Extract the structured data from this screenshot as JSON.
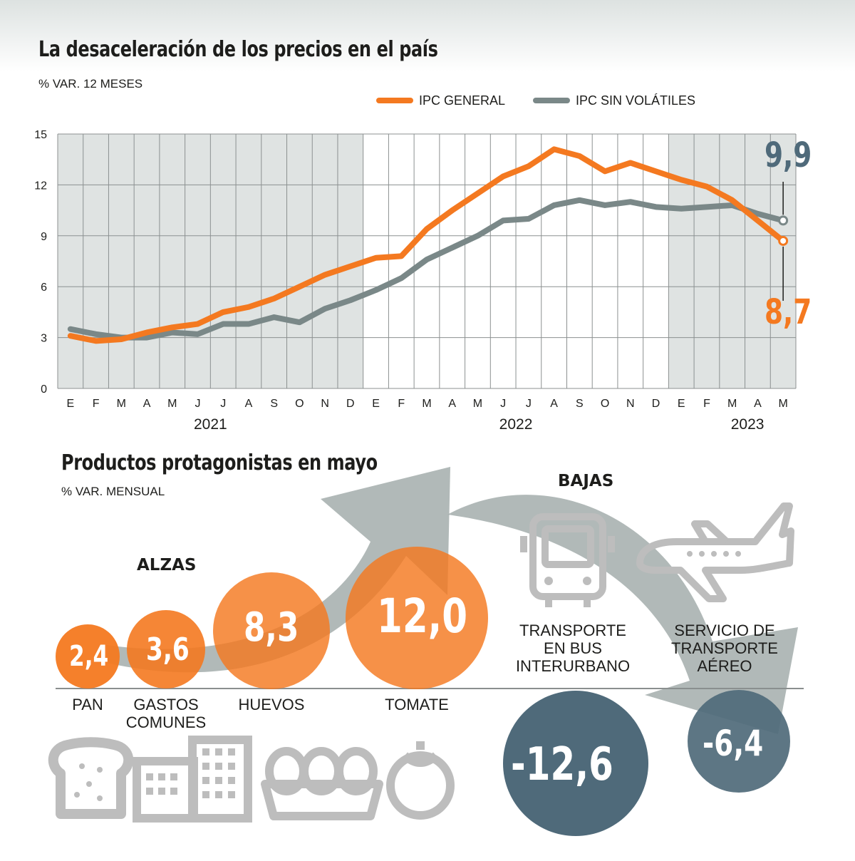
{
  "header": {
    "title": "La desaceleración de los precios en el país",
    "subtitle": "% VAR. 12 MESES"
  },
  "colors": {
    "general": "#f47920",
    "sin_volatiles": "#7a8888",
    "shade": "#dfe3e2",
    "circle_dark": "#4f6a7a",
    "arrow": "#a3adab",
    "icon": "#bdbdbd"
  },
  "chart_data": {
    "type": "line",
    "ylabel": "% VAR. 12 MESES",
    "ylim": [
      0,
      15
    ],
    "yticks": [
      0,
      3,
      6,
      9,
      12,
      15
    ],
    "categories": [
      "E",
      "F",
      "M",
      "A",
      "M",
      "J",
      "J",
      "A",
      "S",
      "O",
      "N",
      "D",
      "E",
      "F",
      "M",
      "A",
      "M",
      "J",
      "J",
      "A",
      "S",
      "O",
      "N",
      "D",
      "E",
      "F",
      "M",
      "A",
      "M"
    ],
    "years": [
      {
        "label": "2021",
        "start": 0,
        "end": 11,
        "shaded": true
      },
      {
        "label": "2022",
        "start": 12,
        "end": 23,
        "shaded": false
      },
      {
        "label": "2023",
        "start": 24,
        "end": 28,
        "shaded": true
      }
    ],
    "grid": true,
    "legend_position": "top-right",
    "series": [
      {
        "name": "IPC GENERAL",
        "color": "#f47920",
        "values": [
          3.1,
          2.8,
          2.9,
          3.3,
          3.6,
          3.8,
          4.5,
          4.8,
          5.3,
          6.0,
          6.7,
          7.2,
          7.7,
          7.8,
          9.4,
          10.5,
          11.5,
          12.5,
          13.1,
          14.1,
          13.7,
          12.8,
          13.3,
          12.8,
          12.3,
          11.9,
          11.1,
          9.9,
          8.7
        ],
        "last_label": "8,7"
      },
      {
        "name": "IPC SIN VOLÁTILES",
        "color": "#7a8888",
        "values": [
          3.5,
          3.2,
          3.0,
          3.0,
          3.3,
          3.2,
          3.8,
          3.8,
          4.2,
          3.9,
          4.7,
          5.2,
          5.8,
          6.5,
          7.6,
          8.3,
          9.0,
          9.9,
          10.0,
          10.8,
          11.1,
          10.8,
          11.0,
          10.7,
          10.6,
          10.7,
          10.8,
          10.3,
          9.9
        ],
        "last_label": "9,9"
      }
    ]
  },
  "products": {
    "title": "Productos protagonistas en mayo",
    "subtitle": "% VAR. MENSUAL",
    "alzas_label": "ALZAS",
    "bajas_label": "BAJAS",
    "alzas": [
      {
        "label": "PAN",
        "value": "2,4",
        "icon": "bread-icon"
      },
      {
        "label": "GASTOS\nCOMUNES",
        "value": "3,6",
        "icon": "buildings-icon"
      },
      {
        "label": "HUEVOS",
        "value": "8,3",
        "icon": "egg-carton-icon"
      },
      {
        "label": "TOMATE",
        "value": "12,0",
        "icon": "tomato-icon"
      }
    ],
    "bajas": [
      {
        "label": "TRANSPORTE\nEN BUS\nINTERURBANO",
        "value": "-12,6",
        "icon": "bus-icon"
      },
      {
        "label": "SERVICIO DE\nTRANSPORTE\nAÉREO",
        "value": "-6,4",
        "icon": "airplane-icon"
      }
    ]
  }
}
